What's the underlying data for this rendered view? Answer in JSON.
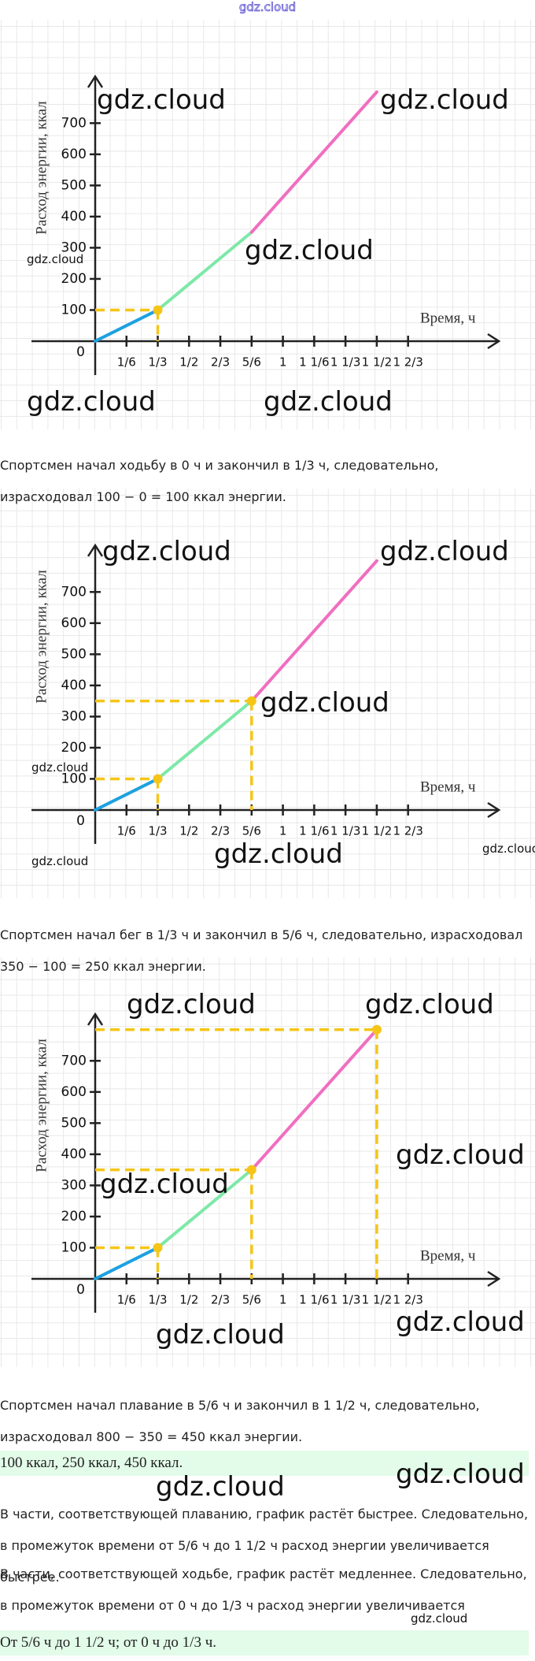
{
  "header": {
    "title": "gdz.cloud"
  },
  "chart_data": [
    {
      "type": "line",
      "ylabel": "Расход  энергии, ккал",
      "xlabel": "Время, ч",
      "xlim": [
        0,
        2.15
      ],
      "ylim": [
        0,
        850
      ],
      "xticks": [
        {
          "value": 0.16667,
          "label": "1/6"
        },
        {
          "value": 0.33333,
          "label": "1/3"
        },
        {
          "value": 0.5,
          "label": "1/2"
        },
        {
          "value": 0.66667,
          "label": "2/3"
        },
        {
          "value": 0.83333,
          "label": "5/6"
        },
        1,
        {
          "value": 1.16667,
          "label": "1 1/6"
        },
        {
          "value": 1.33333,
          "label": "1 1/3"
        },
        {
          "value": 1.5,
          "label": "1 1/2"
        },
        {
          "value": 1.66667,
          "label": "1 2/3"
        }
      ],
      "yticks": [
        0,
        100,
        200,
        300,
        400,
        500,
        600,
        700
      ],
      "series": [
        {
          "color": "#1da1e0",
          "x": [
            0,
            0.33333
          ],
          "values": [
            0,
            100
          ]
        },
        {
          "color": "#7de8a8",
          "x": [
            0.33333,
            0.83333
          ],
          "values": [
            100,
            350
          ]
        },
        {
          "color": "#f06ec0",
          "x": [
            0.83333,
            1.5
          ],
          "values": [
            350,
            800
          ]
        }
      ],
      "guides": [
        {
          "x": 0.33333,
          "y": 100
        }
      ],
      "guide_color": "#f5c518"
    },
    {
      "type": "line",
      "ylabel": "Расход  энергии, ккал",
      "xlabel": "Время, ч",
      "xlim": [
        0,
        2.15
      ],
      "ylim": [
        0,
        850
      ],
      "xticks": [
        {
          "value": 0.16667,
          "label": "1/6"
        },
        {
          "value": 0.33333,
          "label": "1/3"
        },
        {
          "value": 0.5,
          "label": "1/2"
        },
        {
          "value": 0.66667,
          "label": "2/3"
        },
        {
          "value": 0.83333,
          "label": "5/6"
        },
        1,
        {
          "value": 1.16667,
          "label": "1 1/6"
        },
        {
          "value": 1.33333,
          "label": "1 1/3"
        },
        {
          "value": 1.5,
          "label": "1 1/2"
        },
        {
          "value": 1.66667,
          "label": "1 2/3"
        }
      ],
      "yticks": [
        0,
        100,
        200,
        300,
        400,
        500,
        600,
        700
      ],
      "series": [
        {
          "color": "#1da1e0",
          "x": [
            0,
            0.33333
          ],
          "values": [
            0,
            100
          ]
        },
        {
          "color": "#7de8a8",
          "x": [
            0.33333,
            0.83333
          ],
          "values": [
            100,
            350
          ]
        },
        {
          "color": "#f06ec0",
          "x": [
            0.83333,
            1.5
          ],
          "values": [
            350,
            800
          ]
        }
      ],
      "guides": [
        {
          "x": 0.33333,
          "y": 100
        },
        {
          "x": 0.83333,
          "y": 350
        }
      ],
      "guide_color": "#f5c518"
    },
    {
      "type": "line",
      "ylabel": "Расход  энергии, ккал",
      "xlabel": "Время, ч",
      "xlim": [
        0,
        2.15
      ],
      "ylim": [
        0,
        850
      ],
      "xticks": [
        {
          "value": 0.16667,
          "label": "1/6"
        },
        {
          "value": 0.33333,
          "label": "1/3"
        },
        {
          "value": 0.5,
          "label": "1/2"
        },
        {
          "value": 0.66667,
          "label": "2/3"
        },
        {
          "value": 0.83333,
          "label": "5/6"
        },
        1,
        {
          "value": 1.16667,
          "label": "1 1/6"
        },
        {
          "value": 1.33333,
          "label": "1 1/3"
        },
        {
          "value": 1.5,
          "label": "1 1/2"
        },
        {
          "value": 1.66667,
          "label": "1 2/3"
        }
      ],
      "yticks": [
        0,
        100,
        200,
        300,
        400,
        500,
        600,
        700
      ],
      "series": [
        {
          "color": "#1da1e0",
          "x": [
            0,
            0.33333
          ],
          "values": [
            0,
            100
          ]
        },
        {
          "color": "#7de8a8",
          "x": [
            0.33333,
            0.83333
          ],
          "values": [
            100,
            350
          ]
        },
        {
          "color": "#f06ec0",
          "x": [
            0.83333,
            1.5
          ],
          "values": [
            350,
            800
          ]
        }
      ],
      "guides": [
        {
          "x": 0.33333,
          "y": 100
        },
        {
          "x": 0.83333,
          "y": 350
        },
        {
          "x": 1.5,
          "y": 800
        }
      ],
      "guide_color": "#f5c518"
    }
  ],
  "paragraphs": [
    {
      "text": "Спортсмен начал ходьбу в 0 ч и закончил в 1/3 ч, следовательно, израсходовал 100 − 0 = 100 ккал энергии.",
      "highlight": false
    },
    {
      "text": "Спортсмен начал бег в 1/3 ч и закончил в 5/6 ч, следовательно, израсходовал 350 − 100 = 250 ккал энергии.",
      "highlight": false
    },
    {
      "text": "Спортсмен начал плавание в 5/6 ч и закончил в 1 1/2 ч, следовательно, израсходовал 800 − 350 = 450 ккал энергии.",
      "highlight": false
    },
    {
      "text": "100 ккал, 250 ккал, 450 ккал.",
      "highlight": true
    },
    {
      "text": "В части, соответствующей плаванию, график растёт быстрее. Следовательно, в промежуток времени от 5/6 ч до 1 1/2 ч расход энергии увеличивается быстрее.",
      "highlight": false
    },
    {
      "text": "В части, соответствующей ходьбе, график растёт медленнее. Следовательно, в промежуток времени от 0 ч до 1/3 ч расход энергии увеличивается медленнее.",
      "highlight": false
    },
    {
      "text": "От 5/6 ч до 1 1/2 ч; от 0 ч до 1/3 ч.",
      "highlight": true
    }
  ],
  "watermarks": [
    "gdz.cloud",
    "gdz.cloud",
    "gdz.cloud",
    "gdz.cloud",
    "gdz.cloud",
    "gdz.cloud",
    "gdz.cloud",
    "gdz.cloud",
    "gdz.cloud",
    "gdz.cloud",
    "gdz.cloud",
    "gdz.cloud",
    "gdz.cloud",
    "gdz.cloud",
    "gdz.cloud",
    "gdz.cloud",
    "gdz.cloud",
    "gdz.cloud",
    "gdz.cloud",
    "gdz.cloud",
    "gdz.cloud",
    "gdz.cloud"
  ]
}
